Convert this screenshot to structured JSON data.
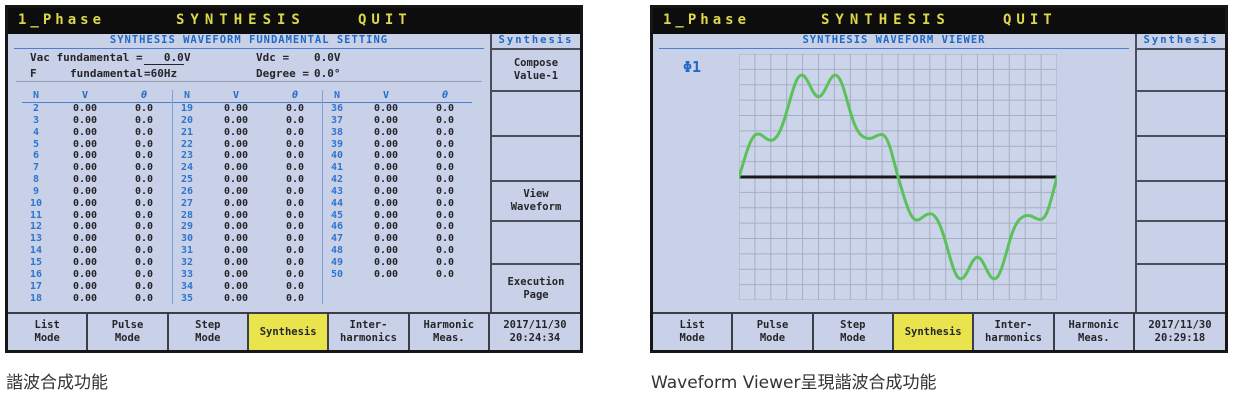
{
  "colors": {
    "screen_bg": "#c8d1e8",
    "header_bg": "#0d0d0d",
    "header_text": "#ddd84a",
    "accent_blue": "#2069c4",
    "active_yellow": "#e9e44e",
    "wave_green": "#5bc25b",
    "grid_line": "#a6aec2",
    "grid_bg": "#ccd4ea",
    "zero_line": "#1a1a1a",
    "text_dark": "#26262a"
  },
  "screens": [
    {
      "header": {
        "phase": "1_Phase",
        "title": "SYNTHESIS",
        "quit": "QUIT"
      },
      "panel_title": "SYNTHESIS WAVEFORM FUNDAMENTAL SETTING",
      "settings": {
        "vac_label": "Vac fundamental =",
        "vac_value": "   0.0",
        "vac_unit": "V",
        "vdc_label": "Vdc =",
        "vdc_value": "0.0V",
        "f_label": "F",
        "f_label2": "fundamental",
        "f_value": "=60Hz",
        "deg_label": "Degree =",
        "deg_value": "0.0°"
      },
      "table": {
        "headers": [
          "N",
          "V",
          "θ"
        ],
        "groups": [
          {
            "rows": [
              [
                "2",
                "0.00",
                "0.0"
              ],
              [
                "3",
                "0.00",
                "0.0"
              ],
              [
                "4",
                "0.00",
                "0.0"
              ],
              [
                "5",
                "0.00",
                "0.0"
              ],
              [
                "6",
                "0.00",
                "0.0"
              ],
              [
                "7",
                "0.00",
                "0.0"
              ],
              [
                "8",
                "0.00",
                "0.0"
              ],
              [
                "9",
                "0.00",
                "0.0"
              ],
              [
                "10",
                "0.00",
                "0.0"
              ],
              [
                "11",
                "0.00",
                "0.0"
              ],
              [
                "12",
                "0.00",
                "0.0"
              ],
              [
                "13",
                "0.00",
                "0.0"
              ],
              [
                "14",
                "0.00",
                "0.0"
              ],
              [
                "15",
                "0.00",
                "0.0"
              ],
              [
                "16",
                "0.00",
                "0.0"
              ],
              [
                "17",
                "0.00",
                "0.0"
              ],
              [
                "18",
                "0.00",
                "0.0"
              ]
            ]
          },
          {
            "rows": [
              [
                "19",
                "0.00",
                "0.0"
              ],
              [
                "20",
                "0.00",
                "0.0"
              ],
              [
                "21",
                "0.00",
                "0.0"
              ],
              [
                "22",
                "0.00",
                "0.0"
              ],
              [
                "23",
                "0.00",
                "0.0"
              ],
              [
                "24",
                "0.00",
                "0.0"
              ],
              [
                "25",
                "0.00",
                "0.0"
              ],
              [
                "26",
                "0.00",
                "0.0"
              ],
              [
                "27",
                "0.00",
                "0.0"
              ],
              [
                "28",
                "0.00",
                "0.0"
              ],
              [
                "29",
                "0.00",
                "0.0"
              ],
              [
                "30",
                "0.00",
                "0.0"
              ],
              [
                "31",
                "0.00",
                "0.0"
              ],
              [
                "32",
                "0.00",
                "0.0"
              ],
              [
                "33",
                "0.00",
                "0.0"
              ],
              [
                "34",
                "0.00",
                "0.0"
              ],
              [
                "35",
                "0.00",
                "0.0"
              ]
            ]
          },
          {
            "rows": [
              [
                "36",
                "0.00",
                "0.0"
              ],
              [
                "37",
                "0.00",
                "0.0"
              ],
              [
                "38",
                "0.00",
                "0.0"
              ],
              [
                "39",
                "0.00",
                "0.0"
              ],
              [
                "40",
                "0.00",
                "0.0"
              ],
              [
                "41",
                "0.00",
                "0.0"
              ],
              [
                "42",
                "0.00",
                "0.0"
              ],
              [
                "43",
                "0.00",
                "0.0"
              ],
              [
                "44",
                "0.00",
                "0.0"
              ],
              [
                "45",
                "0.00",
                "0.0"
              ],
              [
                "46",
                "0.00",
                "0.0"
              ],
              [
                "47",
                "0.00",
                "0.0"
              ],
              [
                "48",
                "0.00",
                "0.0"
              ],
              [
                "49",
                "0.00",
                "0.0"
              ],
              [
                "50",
                "0.00",
                "0.0"
              ]
            ]
          }
        ]
      },
      "softkey_header": "Synthesis",
      "softkeys": [
        "Compose\nValue-1",
        "",
        "",
        "View\nWaveform",
        "",
        "Execution\nPage"
      ],
      "modes": [
        "List\nMode",
        "Pulse\nMode",
        "Step\nMode",
        "Synthesis",
        "Inter-\nharmonics",
        "Harmonic\nMeas."
      ],
      "active_mode_index": 3,
      "clock": {
        "date": "2017/11/30",
        "time": "20:24:34"
      },
      "caption": "諧波合成功能"
    },
    {
      "header": {
        "phase": "1_Phase",
        "title": "SYNTHESIS",
        "quit": "QUIT"
      },
      "panel_title": "SYNTHESIS WAVEFORM VIEWER",
      "phase_label": "Φ1",
      "softkey_header": "Synthesis",
      "softkeys": [
        "",
        "",
        "",
        "",
        "",
        ""
      ],
      "modes": [
        "List\nMode",
        "Pulse\nMode",
        "Step\nMode",
        "Synthesis",
        "Inter-\nharmonics",
        "Harmonic\nMeas."
      ],
      "active_mode_index": 3,
      "clock": {
        "date": "2017/11/30",
        "time": "20:29:18"
      },
      "caption": "Waveform Viewer呈現諧波合成功能"
    }
  ],
  "chart_data": {
    "type": "line",
    "title": "SYNTHESIS WAVEFORM VIEWER",
    "series_name": "Φ1",
    "xlabel": "",
    "ylabel": "",
    "x_range": [
      0,
      1
    ],
    "ylim": [
      -1,
      1
    ],
    "grid": {
      "columns": 20,
      "rows": 16,
      "zero_line": true
    },
    "points": [
      [
        0.0,
        0.0
      ],
      [
        0.01,
        0.09
      ],
      [
        0.022,
        0.2
      ],
      [
        0.035,
        0.3
      ],
      [
        0.048,
        0.36
      ],
      [
        0.06,
        0.375
      ],
      [
        0.072,
        0.36
      ],
      [
        0.085,
        0.33
      ],
      [
        0.098,
        0.315
      ],
      [
        0.11,
        0.32
      ],
      [
        0.125,
        0.37
      ],
      [
        0.14,
        0.47
      ],
      [
        0.152,
        0.58
      ],
      [
        0.165,
        0.71
      ],
      [
        0.178,
        0.82
      ],
      [
        0.19,
        0.875
      ],
      [
        0.202,
        0.88
      ],
      [
        0.214,
        0.84
      ],
      [
        0.226,
        0.77
      ],
      [
        0.238,
        0.71
      ],
      [
        0.25,
        0.685
      ],
      [
        0.262,
        0.71
      ],
      [
        0.274,
        0.77
      ],
      [
        0.286,
        0.84
      ],
      [
        0.298,
        0.88
      ],
      [
        0.31,
        0.875
      ],
      [
        0.322,
        0.82
      ],
      [
        0.335,
        0.71
      ],
      [
        0.348,
        0.58
      ],
      [
        0.36,
        0.47
      ],
      [
        0.375,
        0.385
      ],
      [
        0.39,
        0.345
      ],
      [
        0.405,
        0.33
      ],
      [
        0.42,
        0.335
      ],
      [
        0.435,
        0.36
      ],
      [
        0.45,
        0.37
      ],
      [
        0.462,
        0.345
      ],
      [
        0.474,
        0.27
      ],
      [
        0.486,
        0.15
      ],
      [
        0.5,
        0.0
      ],
      [
        0.51,
        -0.09
      ],
      [
        0.522,
        -0.2
      ],
      [
        0.535,
        -0.3
      ],
      [
        0.548,
        -0.36
      ],
      [
        0.56,
        -0.375
      ],
      [
        0.572,
        -0.36
      ],
      [
        0.585,
        -0.33
      ],
      [
        0.598,
        -0.315
      ],
      [
        0.61,
        -0.32
      ],
      [
        0.625,
        -0.37
      ],
      [
        0.64,
        -0.47
      ],
      [
        0.652,
        -0.58
      ],
      [
        0.665,
        -0.71
      ],
      [
        0.678,
        -0.82
      ],
      [
        0.69,
        -0.875
      ],
      [
        0.702,
        -0.88
      ],
      [
        0.714,
        -0.84
      ],
      [
        0.726,
        -0.77
      ],
      [
        0.738,
        -0.71
      ],
      [
        0.75,
        -0.685
      ],
      [
        0.762,
        -0.71
      ],
      [
        0.774,
        -0.77
      ],
      [
        0.786,
        -0.84
      ],
      [
        0.798,
        -0.88
      ],
      [
        0.81,
        -0.875
      ],
      [
        0.822,
        -0.82
      ],
      [
        0.835,
        -0.71
      ],
      [
        0.848,
        -0.58
      ],
      [
        0.86,
        -0.47
      ],
      [
        0.875,
        -0.385
      ],
      [
        0.89,
        -0.345
      ],
      [
        0.905,
        -0.33
      ],
      [
        0.92,
        -0.335
      ],
      [
        0.935,
        -0.36
      ],
      [
        0.95,
        -0.37
      ],
      [
        0.962,
        -0.345
      ],
      [
        0.974,
        -0.27
      ],
      [
        0.986,
        -0.15
      ],
      [
        1.0,
        0.0
      ]
    ]
  }
}
